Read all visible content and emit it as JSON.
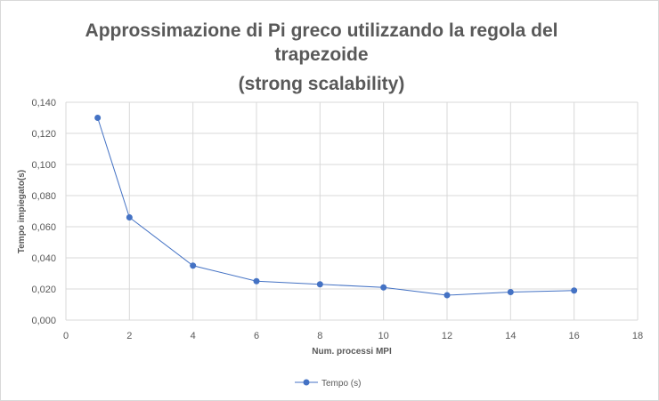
{
  "chart_data": {
    "type": "scatter",
    "title_lines": [
      "Approssimazione di Pi greco utilizzando la regola del",
      "trapezoide",
      "(strong scalability)"
    ],
    "xlabel": "Num. processi MPI",
    "ylabel": "Tempo impiegato(s)",
    "xlim": [
      0,
      18
    ],
    "ylim": [
      0,
      0.14
    ],
    "x_ticks": [
      0,
      2,
      4,
      6,
      8,
      10,
      12,
      14,
      16,
      18
    ],
    "y_ticks": [
      0,
      0.02,
      0.04,
      0.06,
      0.08,
      0.1,
      0.12,
      0.14
    ],
    "y_tick_labels": [
      "0,000",
      "0,020",
      "0,040",
      "0,060",
      "0,080",
      "0,100",
      "0,120",
      "0,140"
    ],
    "grid": true,
    "legend_position": "bottom",
    "series": [
      {
        "name": "Tempo (s)",
        "color": "#4472c4",
        "x": [
          1,
          2,
          4,
          6,
          8,
          10,
          12,
          14,
          16
        ],
        "y": [
          0.13,
          0.066,
          0.035,
          0.025,
          0.023,
          0.021,
          0.016,
          0.018,
          0.019
        ]
      }
    ]
  }
}
